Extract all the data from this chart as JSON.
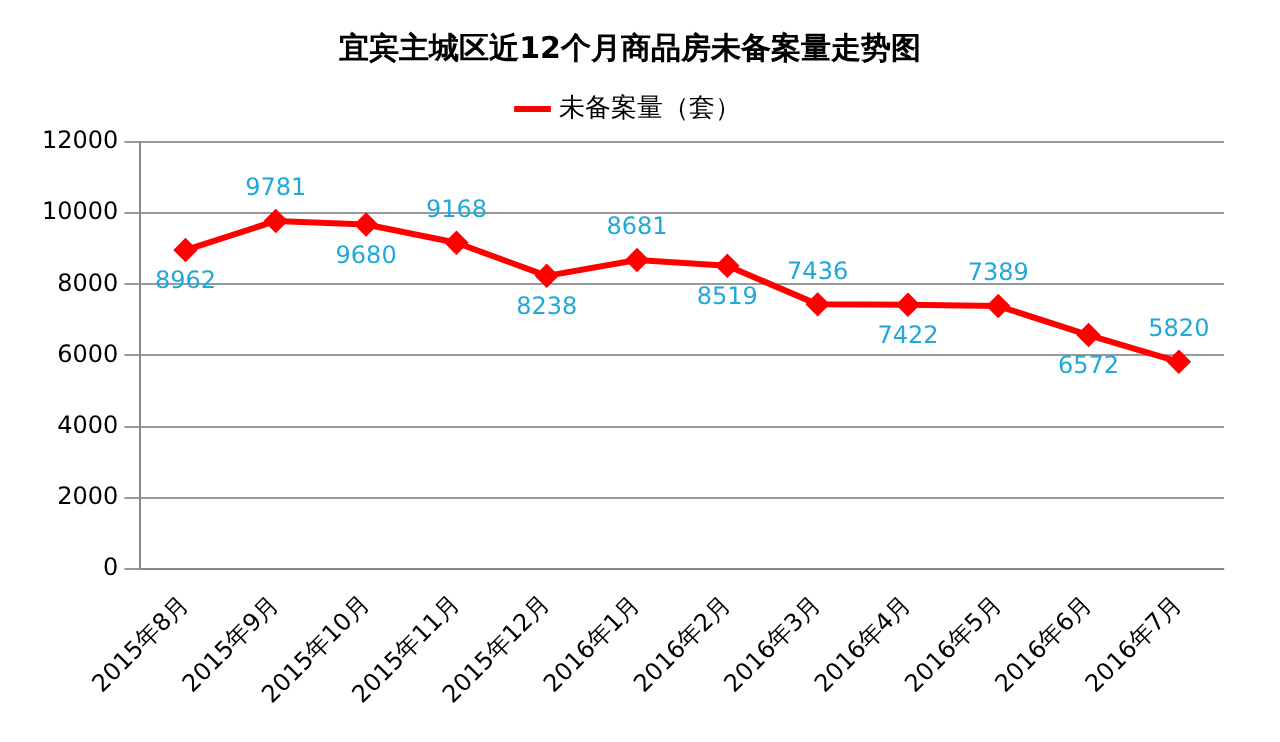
{
  "chart_data": {
    "type": "line",
    "title": "宜宾主城区近12个月商品房未备案量走势图",
    "categories": [
      "2015年8月",
      "2015年9月",
      "2015年10月",
      "2015年11月",
      "2015年12月",
      "2016年1月",
      "2016年2月",
      "2016年3月",
      "2016年4月",
      "2016年5月",
      "2016年6月",
      "2016年7月"
    ],
    "series": [
      {
        "name": "未备案量（套）",
        "color": "#ff0000",
        "values": [
          8962,
          9781,
          9680,
          9168,
          8238,
          8681,
          8519,
          7436,
          7422,
          7389,
          6572,
          5820
        ]
      }
    ],
    "ylim": [
      0,
      12000
    ],
    "yticks": [
      0,
      2000,
      4000,
      6000,
      8000,
      10000,
      12000
    ],
    "grid": "y",
    "legend": "top",
    "marker": "diamond",
    "line_style": "solid",
    "data_labels": true
  }
}
